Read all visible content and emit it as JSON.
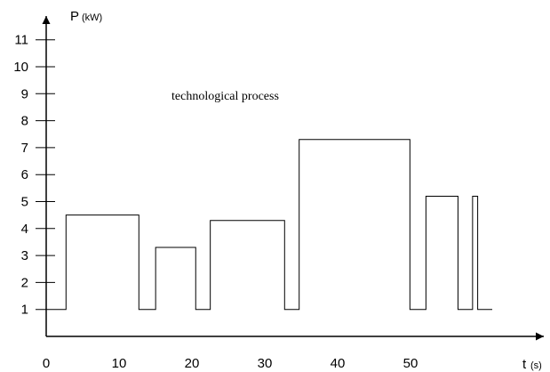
{
  "chart_data": {
    "type": "line",
    "title": "",
    "y_axis": {
      "symbol": "P",
      "unit": "(kW)",
      "ticks": [
        1,
        2,
        3,
        4,
        5,
        6,
        7,
        8,
        9,
        10,
        11
      ],
      "range": [
        0,
        12
      ]
    },
    "x_axis": {
      "symbol": "t",
      "unit": "(s)",
      "ticks": [
        0,
        10,
        20,
        30,
        40,
        50
      ],
      "range": [
        0,
        60
      ]
    },
    "annotation": "technological process",
    "grid": false,
    "series": [
      {
        "style": "step",
        "points": [
          [
            1.5,
            1
          ],
          [
            1.5,
            4.5
          ],
          [
            11.5,
            4.5
          ],
          [
            11.5,
            1
          ],
          [
            13.8,
            1
          ],
          [
            13.8,
            3.3
          ],
          [
            19.3,
            3.3
          ],
          [
            19.3,
            1
          ],
          [
            21.3,
            1
          ],
          [
            21.3,
            4.3
          ],
          [
            31.5,
            4.3
          ],
          [
            31.5,
            1
          ],
          [
            33.5,
            1
          ],
          [
            33.5,
            7.3
          ],
          [
            48.7,
            7.3
          ],
          [
            48.7,
            1
          ],
          [
            50.9,
            1
          ],
          [
            50.9,
            5.2
          ],
          [
            55.3,
            5.2
          ],
          [
            55.3,
            1
          ],
          [
            57.3,
            1
          ],
          [
            57.3,
            5.2
          ],
          [
            58.0,
            5.2
          ],
          [
            58.0,
            1
          ],
          [
            60.0,
            1
          ]
        ],
        "start": [
          0,
          1
        ]
      }
    ]
  }
}
